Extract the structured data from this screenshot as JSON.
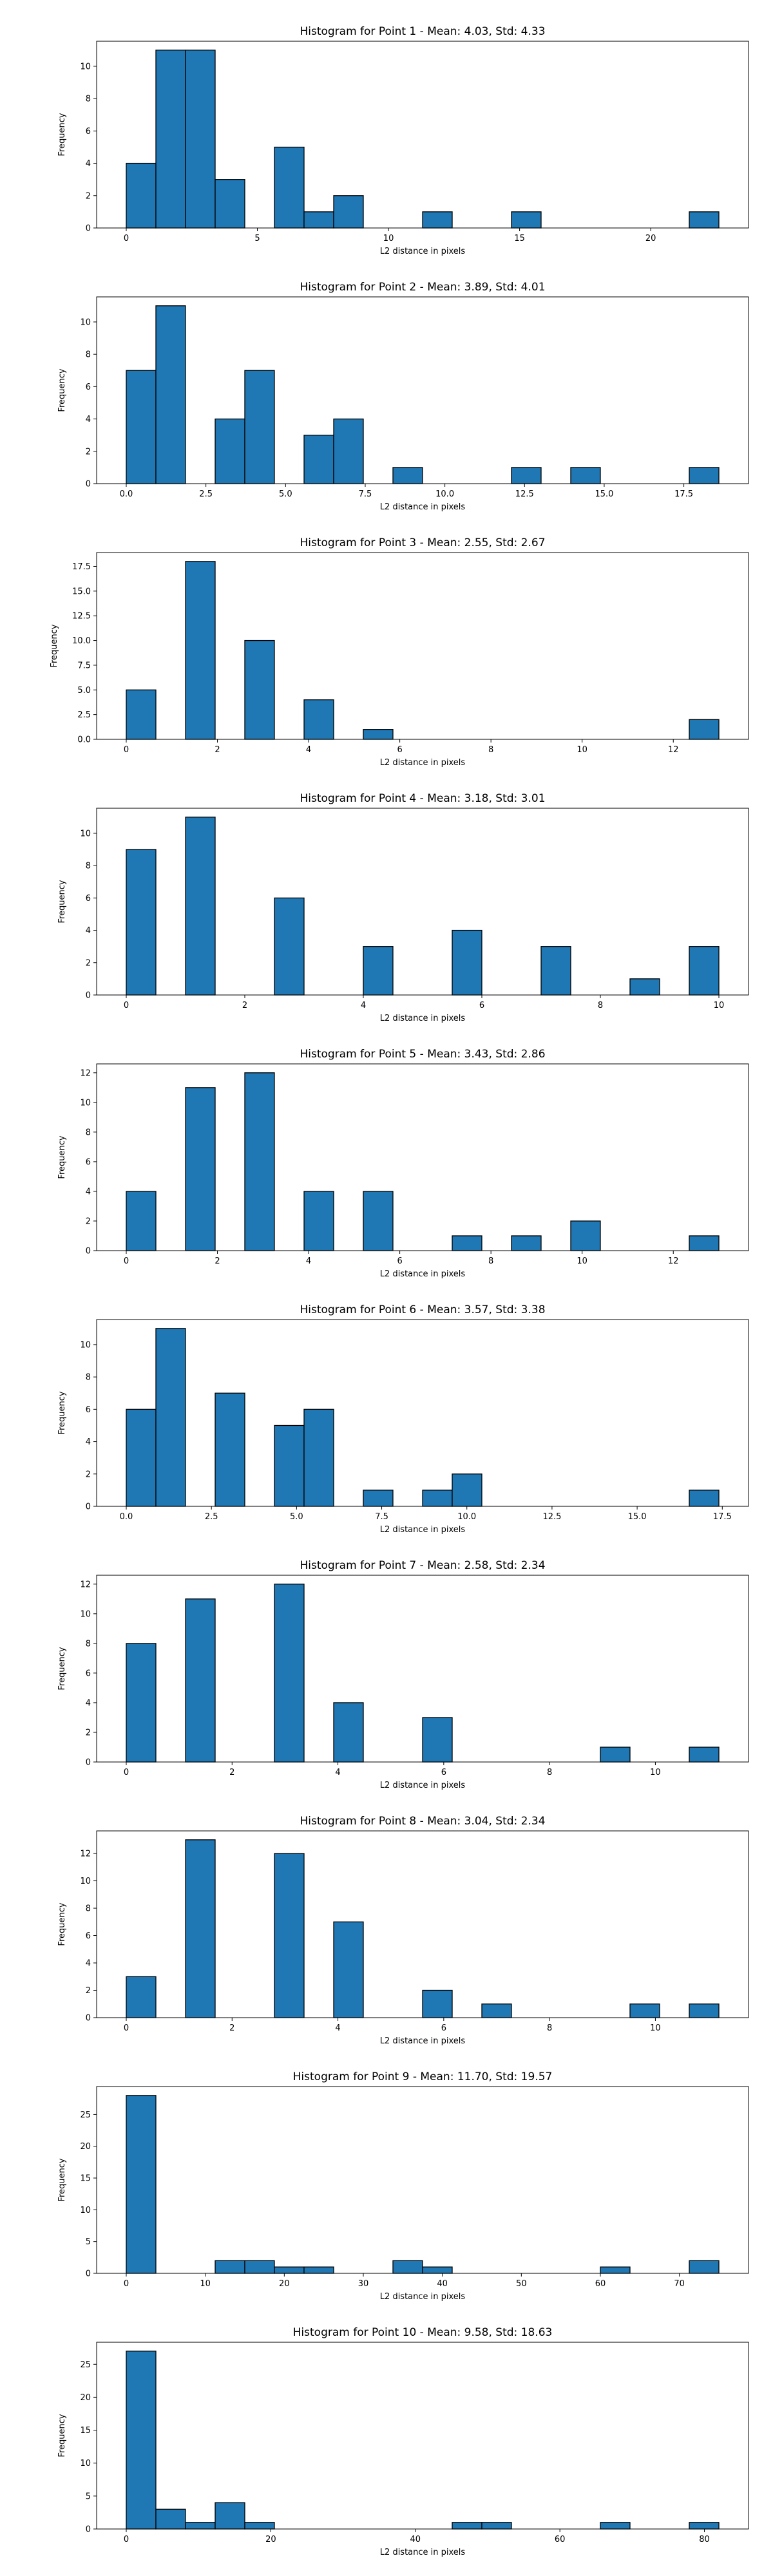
{
  "figure": {
    "bar_color": "#1f77b4",
    "edge_color": "#000000",
    "background": "#ffffff"
  },
  "chart_data": [
    {
      "type": "bar",
      "title": "Histogram for Point 1 - Mean: 4.03, Std: 4.33",
      "xlabel": "L2 distance in pixels",
      "ylabel": "Frequency",
      "xlim": [
        -1.13,
        23.73
      ],
      "ylim": [
        0,
        11.55
      ],
      "xticks": [
        0,
        5,
        10,
        15,
        20
      ],
      "yticks": [
        0,
        2,
        4,
        6,
        8,
        10
      ],
      "bins": [
        {
          "x0": 0.0,
          "x1": 1.13,
          "count": 4
        },
        {
          "x0": 1.13,
          "x1": 2.26,
          "count": 11
        },
        {
          "x0": 2.26,
          "x1": 3.39,
          "count": 11
        },
        {
          "x0": 3.39,
          "x1": 4.52,
          "count": 3
        },
        {
          "x0": 5.65,
          "x1": 6.78,
          "count": 5
        },
        {
          "x0": 6.78,
          "x1": 7.91,
          "count": 1
        },
        {
          "x0": 7.91,
          "x1": 9.04,
          "count": 2
        },
        {
          "x0": 11.3,
          "x1": 12.43,
          "count": 1
        },
        {
          "x0": 14.69,
          "x1": 15.82,
          "count": 1
        },
        {
          "x0": 21.47,
          "x1": 22.6,
          "count": 1
        }
      ]
    },
    {
      "type": "bar",
      "title": "Histogram for Point 2 - Mean: 3.89, Std: 4.01",
      "xlabel": "L2 distance in pixels",
      "ylabel": "Frequency",
      "xlim": [
        -0.93,
        19.53
      ],
      "ylim": [
        0,
        11.55
      ],
      "xticks": [
        0.0,
        2.5,
        5.0,
        7.5,
        10.0,
        12.5,
        15.0,
        17.5
      ],
      "xtick_labels": [
        "0.0",
        "2.5",
        "5.0",
        "7.5",
        "10.0",
        "12.5",
        "15.0",
        "17.5"
      ],
      "yticks": [
        0,
        2,
        4,
        6,
        8,
        10
      ],
      "bins": [
        {
          "x0": 0.0,
          "x1": 0.93,
          "count": 7
        },
        {
          "x0": 0.93,
          "x1": 1.86,
          "count": 11
        },
        {
          "x0": 2.79,
          "x1": 3.72,
          "count": 4
        },
        {
          "x0": 3.72,
          "x1": 4.65,
          "count": 7
        },
        {
          "x0": 5.58,
          "x1": 6.51,
          "count": 3
        },
        {
          "x0": 6.51,
          "x1": 7.44,
          "count": 4
        },
        {
          "x0": 8.37,
          "x1": 9.3,
          "count": 1
        },
        {
          "x0": 12.09,
          "x1": 13.02,
          "count": 1
        },
        {
          "x0": 13.95,
          "x1": 14.88,
          "count": 1
        },
        {
          "x0": 17.67,
          "x1": 18.6,
          "count": 1
        }
      ]
    },
    {
      "type": "bar",
      "title": "Histogram for Point 3 - Mean: 2.55, Std: 2.67",
      "xlabel": "L2 distance in pixels",
      "ylabel": "Frequency",
      "xlim": [
        -0.65,
        13.65
      ],
      "ylim": [
        0,
        18.9
      ],
      "xticks": [
        0,
        2,
        4,
        6,
        8,
        10,
        12
      ],
      "yticks": [
        0.0,
        2.5,
        5.0,
        7.5,
        10.0,
        12.5,
        15.0,
        17.5
      ],
      "ytick_labels": [
        "0.0",
        "2.5",
        "5.0",
        "7.5",
        "10.0",
        "12.5",
        "15.0",
        "17.5"
      ],
      "bins": [
        {
          "x0": 0.0,
          "x1": 0.65,
          "count": 5
        },
        {
          "x0": 1.3,
          "x1": 1.95,
          "count": 18
        },
        {
          "x0": 2.6,
          "x1": 3.25,
          "count": 10
        },
        {
          "x0": 3.9,
          "x1": 4.55,
          "count": 4
        },
        {
          "x0": 5.2,
          "x1": 5.85,
          "count": 1
        },
        {
          "x0": 12.35,
          "x1": 13.0,
          "count": 2
        }
      ]
    },
    {
      "type": "bar",
      "title": "Histogram for Point 4 - Mean: 3.18, Std: 3.01",
      "xlabel": "L2 distance in pixels",
      "ylabel": "Frequency",
      "xlim": [
        -0.5,
        10.5
      ],
      "ylim": [
        0,
        11.55
      ],
      "xticks": [
        0,
        2,
        4,
        6,
        8,
        10
      ],
      "yticks": [
        0,
        2,
        4,
        6,
        8,
        10
      ],
      "bins": [
        {
          "x0": 0.0,
          "x1": 0.5,
          "count": 9
        },
        {
          "x0": 1.0,
          "x1": 1.5,
          "count": 11
        },
        {
          "x0": 2.5,
          "x1": 3.0,
          "count": 6
        },
        {
          "x0": 4.0,
          "x1": 4.5,
          "count": 3
        },
        {
          "x0": 5.5,
          "x1": 6.0,
          "count": 4
        },
        {
          "x0": 7.0,
          "x1": 7.5,
          "count": 3
        },
        {
          "x0": 8.5,
          "x1": 9.0,
          "count": 1
        },
        {
          "x0": 9.5,
          "x1": 10.0,
          "count": 3
        }
      ]
    },
    {
      "type": "bar",
      "title": "Histogram for Point 5 - Mean: 3.43, Std: 2.86",
      "xlabel": "L2 distance in pixels",
      "ylabel": "Frequency",
      "xlim": [
        -0.65,
        13.65
      ],
      "ylim": [
        0,
        12.6
      ],
      "xticks": [
        0,
        2,
        4,
        6,
        8,
        10,
        12
      ],
      "yticks": [
        0,
        2,
        4,
        6,
        8,
        10,
        12
      ],
      "bins": [
        {
          "x0": 0.0,
          "x1": 0.65,
          "count": 4
        },
        {
          "x0": 1.3,
          "x1": 1.95,
          "count": 11
        },
        {
          "x0": 2.6,
          "x1": 3.25,
          "count": 12
        },
        {
          "x0": 3.9,
          "x1": 4.55,
          "count": 4
        },
        {
          "x0": 5.2,
          "x1": 5.85,
          "count": 4
        },
        {
          "x0": 7.15,
          "x1": 7.8,
          "count": 1
        },
        {
          "x0": 8.45,
          "x1": 9.1,
          "count": 1
        },
        {
          "x0": 9.75,
          "x1": 10.4,
          "count": 2
        },
        {
          "x0": 12.35,
          "x1": 13.0,
          "count": 1
        }
      ]
    },
    {
      "type": "bar",
      "title": "Histogram for Point 6 - Mean: 3.57, Std: 3.38",
      "xlabel": "L2 distance in pixels",
      "ylabel": "Frequency",
      "xlim": [
        -0.87,
        18.27
      ],
      "ylim": [
        0,
        11.55
      ],
      "xticks": [
        0.0,
        2.5,
        5.0,
        7.5,
        10.0,
        12.5,
        15.0,
        17.5
      ],
      "xtick_labels": [
        "0.0",
        "2.5",
        "5.0",
        "7.5",
        "10.0",
        "12.5",
        "15.0",
        "17.5"
      ],
      "yticks": [
        0,
        2,
        4,
        6,
        8,
        10
      ],
      "bins": [
        {
          "x0": 0.0,
          "x1": 0.87,
          "count": 6
        },
        {
          "x0": 0.87,
          "x1": 1.74,
          "count": 11
        },
        {
          "x0": 2.61,
          "x1": 3.48,
          "count": 7
        },
        {
          "x0": 4.35,
          "x1": 5.22,
          "count": 5
        },
        {
          "x0": 5.22,
          "x1": 6.09,
          "count": 6
        },
        {
          "x0": 6.96,
          "x1": 7.83,
          "count": 1
        },
        {
          "x0": 8.7,
          "x1": 9.57,
          "count": 1
        },
        {
          "x0": 9.57,
          "x1": 10.44,
          "count": 2
        },
        {
          "x0": 16.53,
          "x1": 17.4,
          "count": 1
        }
      ]
    },
    {
      "type": "bar",
      "title": "Histogram for Point 7 - Mean: 2.58, Std: 2.34",
      "xlabel": "L2 distance in pixels",
      "ylabel": "Frequency",
      "xlim": [
        -0.56,
        11.76
      ],
      "ylim": [
        0,
        12.6
      ],
      "xticks": [
        0,
        2,
        4,
        6,
        8,
        10
      ],
      "yticks": [
        0,
        2,
        4,
        6,
        8,
        10,
        12
      ],
      "bins": [
        {
          "x0": 0.0,
          "x1": 0.56,
          "count": 8
        },
        {
          "x0": 1.12,
          "x1": 1.68,
          "count": 11
        },
        {
          "x0": 2.8,
          "x1": 3.36,
          "count": 12
        },
        {
          "x0": 3.92,
          "x1": 4.48,
          "count": 4
        },
        {
          "x0": 5.6,
          "x1": 6.16,
          "count": 3
        },
        {
          "x0": 8.96,
          "x1": 9.52,
          "count": 1
        },
        {
          "x0": 10.64,
          "x1": 11.2,
          "count": 1
        }
      ]
    },
    {
      "type": "bar",
      "title": "Histogram for Point 8 - Mean: 3.04, Std: 2.34",
      "xlabel": "L2 distance in pixels",
      "ylabel": "Frequency",
      "xlim": [
        -0.56,
        11.76
      ],
      "ylim": [
        0,
        13.65
      ],
      "xticks": [
        0,
        2,
        4,
        6,
        8,
        10
      ],
      "yticks": [
        0,
        2,
        4,
        6,
        8,
        10,
        12
      ],
      "bins": [
        {
          "x0": 0.0,
          "x1": 0.56,
          "count": 3
        },
        {
          "x0": 1.12,
          "x1": 1.68,
          "count": 13
        },
        {
          "x0": 2.8,
          "x1": 3.36,
          "count": 12
        },
        {
          "x0": 3.92,
          "x1": 4.48,
          "count": 7
        },
        {
          "x0": 5.6,
          "x1": 6.16,
          "count": 2
        },
        {
          "x0": 6.72,
          "x1": 7.28,
          "count": 1
        },
        {
          "x0": 9.52,
          "x1": 10.08,
          "count": 1
        },
        {
          "x0": 10.64,
          "x1": 11.2,
          "count": 1
        }
      ]
    },
    {
      "type": "bar",
      "title": "Histogram for Point 9 - Mean: 11.70, Std: 19.57",
      "xlabel": "L2 distance in pixels",
      "ylabel": "Frequency",
      "xlim": [
        -3.75,
        78.75
      ],
      "ylim": [
        0,
        29.4
      ],
      "xticks": [
        0,
        10,
        20,
        30,
        40,
        50,
        60,
        70
      ],
      "yticks": [
        0,
        5,
        10,
        15,
        20,
        25
      ],
      "bins": [
        {
          "x0": 0.0,
          "x1": 3.75,
          "count": 28
        },
        {
          "x0": 11.25,
          "x1": 15.0,
          "count": 2
        },
        {
          "x0": 15.0,
          "x1": 18.75,
          "count": 2
        },
        {
          "x0": 18.75,
          "x1": 22.5,
          "count": 1
        },
        {
          "x0": 22.5,
          "x1": 26.25,
          "count": 1
        },
        {
          "x0": 33.75,
          "x1": 37.5,
          "count": 2
        },
        {
          "x0": 37.5,
          "x1": 41.25,
          "count": 1
        },
        {
          "x0": 60.0,
          "x1": 63.75,
          "count": 1
        },
        {
          "x0": 71.25,
          "x1": 75.0,
          "count": 2
        }
      ]
    },
    {
      "type": "bar",
      "title": "Histogram for Point 10 - Mean: 9.58, Std: 18.63",
      "xlabel": "L2 distance in pixels",
      "ylabel": "Frequency",
      "xlim": [
        -4.1,
        86.1
      ],
      "ylim": [
        0,
        28.35
      ],
      "xticks": [
        0,
        20,
        40,
        60,
        80
      ],
      "yticks": [
        0,
        5,
        10,
        15,
        20,
        25
      ],
      "bins": [
        {
          "x0": 0.0,
          "x1": 4.1,
          "count": 27
        },
        {
          "x0": 4.1,
          "x1": 8.2,
          "count": 3
        },
        {
          "x0": 8.2,
          "x1": 12.3,
          "count": 1
        },
        {
          "x0": 12.3,
          "x1": 16.4,
          "count": 4
        },
        {
          "x0": 16.4,
          "x1": 20.5,
          "count": 1
        },
        {
          "x0": 45.1,
          "x1": 49.2,
          "count": 1
        },
        {
          "x0": 49.2,
          "x1": 53.3,
          "count": 1
        },
        {
          "x0": 65.6,
          "x1": 69.7,
          "count": 1
        },
        {
          "x0": 77.9,
          "x1": 82.0,
          "count": 1
        }
      ]
    }
  ]
}
